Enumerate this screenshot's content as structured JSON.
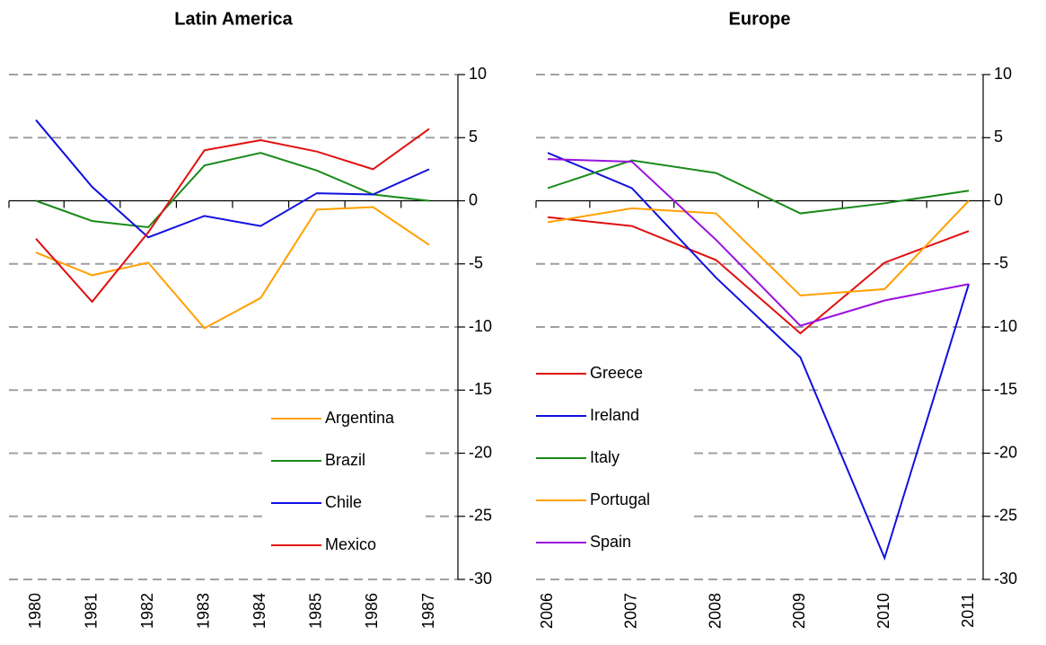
{
  "chart_data": [
    {
      "type": "line",
      "title": "Latin America",
      "categories": [
        "1980",
        "1981",
        "1982",
        "1983",
        "1984",
        "1985",
        "1986",
        "1987"
      ],
      "series": [
        {
          "name": "Argentina",
          "color": "#ffa000",
          "values": [
            -4.1,
            -5.9,
            -4.9,
            -10.1,
            -7.7,
            -0.7,
            -0.5,
            -3.5
          ]
        },
        {
          "name": "Brazil",
          "color": "#1a8a1a",
          "values": [
            0,
            -1.6,
            -2.1,
            2.8,
            3.8,
            2.4,
            0.5,
            0
          ]
        },
        {
          "name": "Chile",
          "color": "#1010e0",
          "values": [
            6.4,
            1.1,
            -2.9,
            -1.2,
            -2.0,
            0.6,
            0.5,
            2.5
          ]
        },
        {
          "name": "Mexico",
          "color": "#e01010",
          "values": [
            -3.0,
            -8.0,
            -2.5,
            4.0,
            4.8,
            3.9,
            2.5,
            5.7
          ]
        }
      ],
      "ylim": [
        -30,
        10
      ],
      "yticks": [
        10,
        5,
        0,
        -5,
        -10,
        -15,
        -20,
        -25,
        -30
      ],
      "grid": true,
      "legend": "lower right"
    },
    {
      "type": "line",
      "title": "Europe",
      "categories": [
        "2006",
        "2007",
        "2008",
        "2009",
        "2010",
        "2011"
      ],
      "series": [
        {
          "name": "Greece",
          "color": "#e01010",
          "values": [
            -1.3,
            -2.0,
            -4.7,
            -10.5,
            -4.9,
            -2.4
          ]
        },
        {
          "name": "Ireland",
          "color": "#1010e0",
          "values": [
            3.8,
            1.0,
            -6.1,
            -12.4,
            -28.3,
            -6.6
          ]
        },
        {
          "name": "Italy",
          "color": "#1a8a1a",
          "values": [
            1.0,
            3.2,
            2.2,
            -1.0,
            -0.2,
            0.8
          ]
        },
        {
          "name": "Portugal",
          "color": "#ffa000",
          "values": [
            -1.7,
            -0.6,
            -1.0,
            -7.5,
            -7.0,
            0.0
          ]
        },
        {
          "name": "Spain",
          "color": "#9a10e0",
          "values": [
            3.3,
            3.1,
            -3.1,
            -9.9,
            -7.9,
            -6.6
          ]
        }
      ],
      "ylim": [
        -30,
        10
      ],
      "yticks": [
        10,
        5,
        0,
        -5,
        -10,
        -15,
        -20,
        -25,
        -30
      ],
      "grid": true,
      "legend": "lower left"
    }
  ]
}
